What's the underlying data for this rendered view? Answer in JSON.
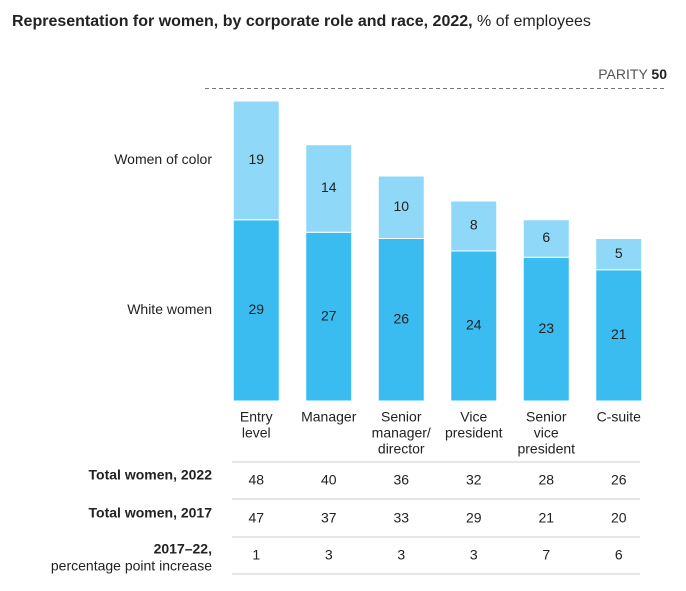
{
  "chart_data": {
    "type": "stacked-bar",
    "title": "Representation for women, by corporate role and race, 2022,",
    "subtitle": "% of employees",
    "categories": [
      [
        "Entry",
        "level"
      ],
      [
        "Manager"
      ],
      [
        "Senior",
        "manager/",
        "director"
      ],
      [
        "Vice",
        "president"
      ],
      [
        "Senior",
        "vice",
        "president"
      ],
      [
        "C-suite"
      ]
    ],
    "series": [
      {
        "name": "White women",
        "color": "#3bbcf0",
        "values": [
          29,
          27,
          26,
          24,
          23,
          21
        ]
      },
      {
        "name": "Women of color",
        "color": "#8fd8f8",
        "values": [
          19,
          14,
          10,
          8,
          6,
          5
        ]
      }
    ],
    "parity": {
      "label": "PARITY",
      "value": 50
    },
    "table": [
      {
        "label": [
          "Total women, 2022"
        ],
        "values": [
          48,
          40,
          36,
          32,
          28,
          26
        ]
      },
      {
        "label": [
          "Total women, 2017"
        ],
        "values": [
          47,
          37,
          33,
          29,
          21,
          20
        ]
      },
      {
        "label": [
          "2017–22,",
          "percentage point increase"
        ],
        "values": [
          1,
          3,
          3,
          3,
          7,
          6
        ]
      }
    ]
  }
}
